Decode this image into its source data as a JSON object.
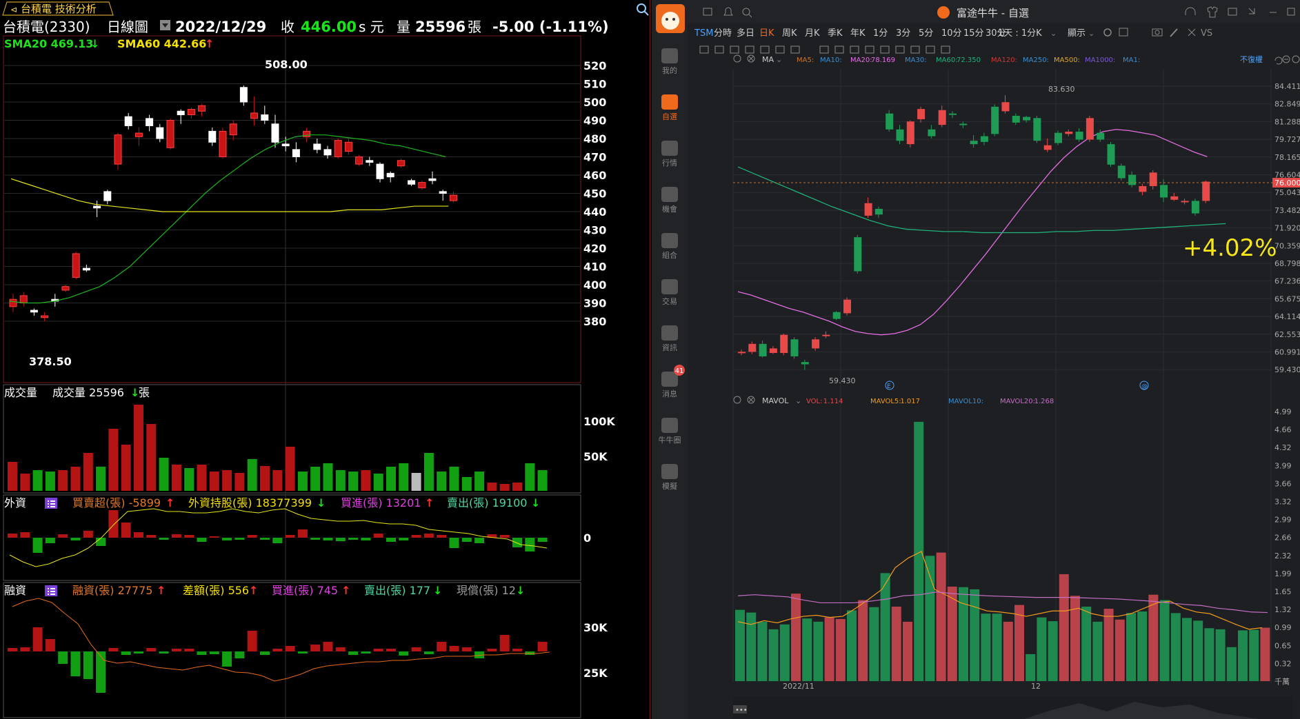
{
  "left": {
    "tab_label": "台積電 技術分析",
    "stock_name": "台積電(2330)",
    "period": "日線圖",
    "date": "2022/12/29",
    "close_label": "收",
    "close": "446.00",
    "currency": "s 元",
    "volume_label": "量",
    "volume": "25596",
    "volume_unit": "張",
    "change": "-5.00 (-1.11%)",
    "sma20": "SMA20 469.13",
    "sma60": "SMA60 442.66",
    "high_label": "508.00",
    "low_label": "378.50",
    "price_ticks": [
      "520",
      "510",
      "500",
      "490",
      "480",
      "470",
      "460",
      "450",
      "440",
      "430",
      "420",
      "410",
      "400",
      "390",
      "380"
    ],
    "vol_title": "成交量",
    "vol_sub": "成交量 25596",
    "vol_unit": "張",
    "vol_ticks": [
      "100K",
      "50K"
    ],
    "foreign_title": "外資",
    "foreign_net": "買賣超(張) -5899",
    "foreign_hold": "外資持股(張) 18377399",
    "foreign_buy": "買進(張) 13201",
    "foreign_sell": "賣出(張) 19100",
    "foreign_tick": "0",
    "margin_title": "融資",
    "margin_bal": "融資(張) 27775",
    "margin_diff": "差額(張) 556",
    "margin_buy": "買進(張) 745",
    "margin_sell": "賣出(張) 177",
    "margin_cash": "現償(張) 12",
    "margin_ticks": [
      "30K",
      "25K"
    ],
    "arrow_up": "↑",
    "arrow_down": "↓"
  },
  "right": {
    "title": "富途牛牛 - 自選",
    "symbol": "TSM",
    "periods": [
      "分時",
      "多日",
      "日K",
      "周K",
      "月K",
      "季K",
      "年K",
      "1分",
      "3分",
      "5分",
      "10分",
      "15分",
      "30分"
    ],
    "period_active": "日K",
    "range": "1天 : 1分K",
    "display": "顯示",
    "sidebar": [
      "我的",
      "自選",
      "行情",
      "機會",
      "組合",
      "交易",
      "資訊",
      "消息",
      "牛牛圈",
      "模擬"
    ],
    "message_badge": "41",
    "ma_label": "MA",
    "ma_items": [
      {
        "label": "MA5:",
        "value": ""
      },
      {
        "label": "MA10:",
        "value": ""
      },
      {
        "label": "MA20:",
        "value": "78.169"
      },
      {
        "label": "MA30:",
        "value": ""
      },
      {
        "label": "MA60:",
        "value": "72.350"
      },
      {
        "label": "MA120:",
        "value": ""
      },
      {
        "label": "MA250:",
        "value": ""
      },
      {
        "label": "MA500:",
        "value": ""
      },
      {
        "label": "MA1000:",
        "value": ""
      },
      {
        "label": "MA1:",
        "value": ""
      }
    ],
    "adjust": "不復權",
    "price_ticks": [
      "84.411",
      "82.849",
      "81.288",
      "79.727",
      "78.165",
      "76.604",
      "75.043",
      "73.482",
      "71.920",
      "70.359",
      "68.798",
      "67.236",
      "65.675",
      "64.114",
      "62.553",
      "60.991",
      "59.430"
    ],
    "current_price": "76.000",
    "high_label": "83.630",
    "low_label": "59.430",
    "pct": "+4.02%",
    "mavol_label": "MAVOL",
    "vol_items": [
      {
        "label": "VOL:",
        "value": "1.114"
      },
      {
        "label": "MAVOL5:",
        "value": "1.017"
      },
      {
        "label": "MAVOL10:",
        "value": ""
      },
      {
        "label": "MAVOL20:",
        "value": "1.268"
      }
    ],
    "vol_ticks": [
      "4.99",
      "4.66",
      "4.32",
      "3.99",
      "3.66",
      "3.32",
      "2.99",
      "2.66",
      "2.32",
      "1.99",
      "1.65",
      "1.32",
      "0.99",
      "0.65",
      "0.32",
      "千萬"
    ],
    "x_labels": [
      "2022/11",
      "12"
    ],
    "colors": {
      "up": "#e84a4a",
      "down": "#1e9c55",
      "ma20": "#e46ee4",
      "ma60": "#1fb27a",
      "mavol5": "#f29b1c",
      "mavol20": "#c46ec4"
    }
  }
}
